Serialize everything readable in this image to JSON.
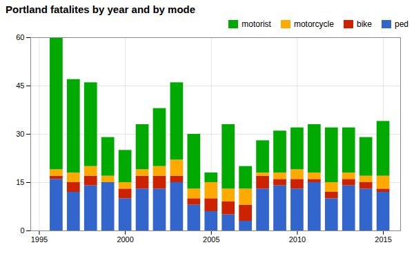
{
  "chart_data": {
    "type": "bar",
    "title": "Portland fatalites by year and by mode",
    "x": [
      1996,
      1997,
      1998,
      1999,
      2000,
      2001,
      2002,
      2003,
      2004,
      2005,
      2006,
      2007,
      2008,
      2009,
      2010,
      2011,
      2012,
      2013,
      2014,
      2015
    ],
    "series": [
      {
        "name": "ped",
        "color": "#3366cc",
        "values": [
          16,
          12,
          14,
          15,
          10,
          13,
          13,
          15,
          8,
          6,
          5,
          3,
          13,
          14,
          13,
          15,
          10,
          14,
          13,
          12
        ]
      },
      {
        "name": "bike",
        "color": "#cc2200",
        "values": [
          1,
          3,
          3,
          0,
          3,
          4,
          4,
          2,
          2,
          4,
          4,
          5,
          4,
          2,
          3,
          1,
          2,
          2,
          2,
          1
        ]
      },
      {
        "name": "motorcycle",
        "color": "#ffaa00",
        "values": [
          2,
          3,
          3,
          2,
          2,
          2,
          3,
          5,
          3,
          5,
          4,
          5,
          1,
          2,
          3,
          2,
          3,
          2,
          2,
          4
        ]
      },
      {
        "name": "motorist",
        "color": "#00aa00",
        "values": [
          41,
          29,
          26,
          12,
          10,
          14,
          18,
          24,
          17,
          3,
          20,
          7,
          10,
          13,
          13,
          15,
          17,
          14,
          12,
          17
        ]
      }
    ],
    "xlim": [
      1994.5,
      2016
    ],
    "xticks": [
      1995,
      2000,
      2005,
      2010,
      2015
    ],
    "ylim": [
      0,
      60
    ],
    "yticks": [
      0,
      15,
      30,
      45,
      60
    ],
    "stacked": true,
    "grid": true,
    "legend": "upper right"
  }
}
